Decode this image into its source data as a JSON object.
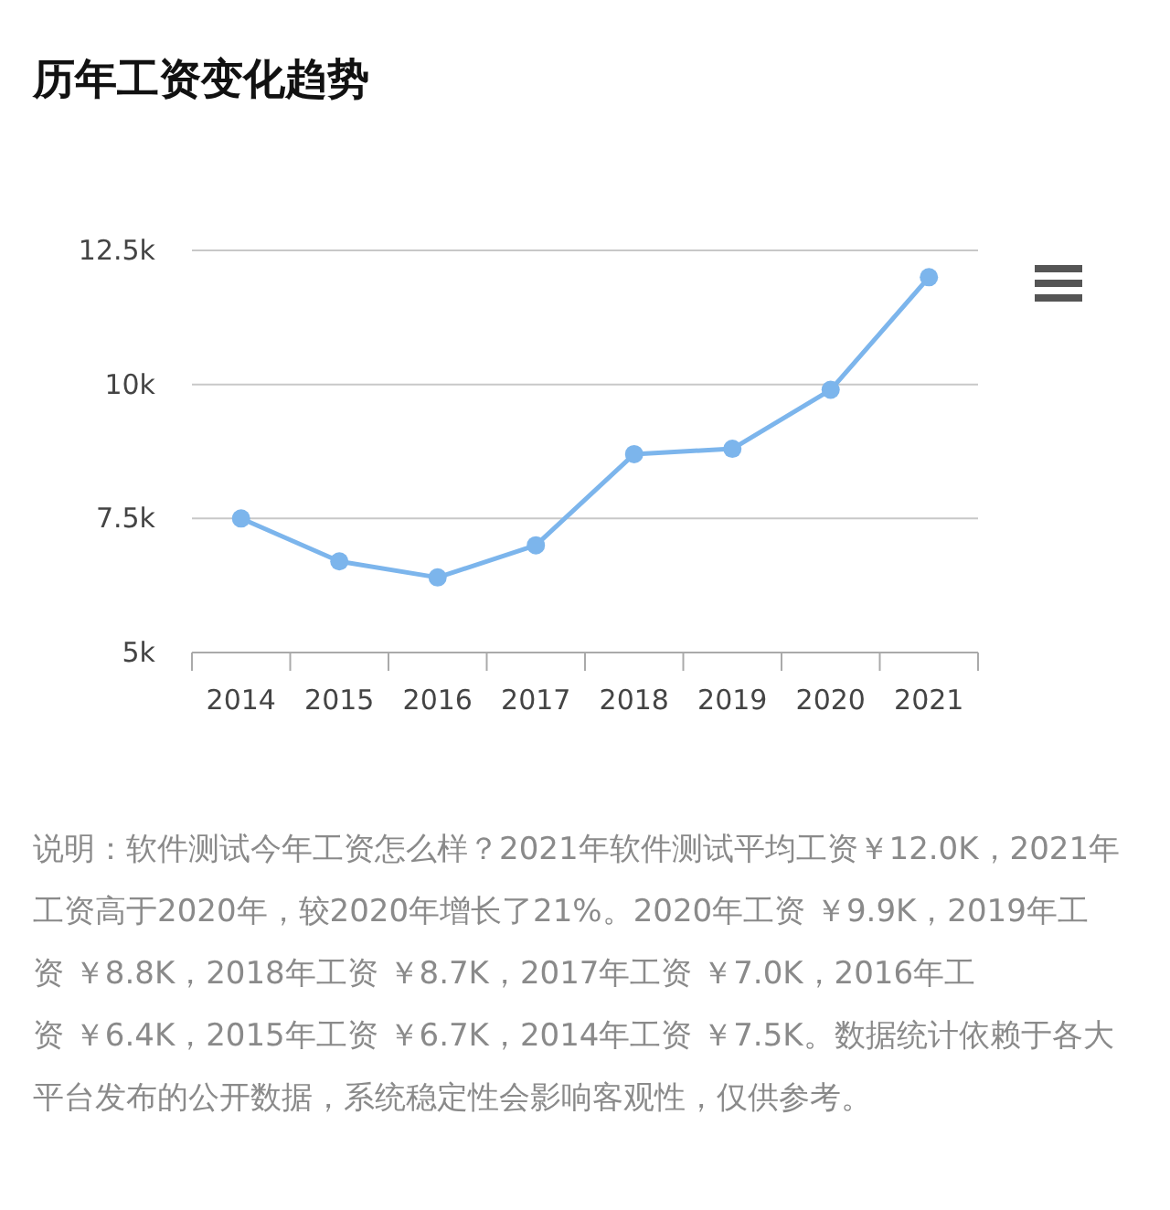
{
  "chart_data": {
    "type": "line",
    "title": "历年工资变化趋势",
    "categories": [
      "2014",
      "2015",
      "2016",
      "2017",
      "2018",
      "2019",
      "2020",
      "2021"
    ],
    "series": [
      {
        "color": "#7cb5ec",
        "values": [
          7.5,
          6.7,
          6.4,
          7.0,
          8.7,
          8.8,
          9.9,
          12.0
        ]
      }
    ],
    "ylim": [
      5,
      12.5
    ],
    "yticks": [
      {
        "value": 5,
        "label": "5k"
      },
      {
        "value": 7.5,
        "label": "7.5k"
      },
      {
        "value": 10,
        "label": "10k"
      },
      {
        "value": 12.5,
        "label": "12.5k"
      }
    ],
    "grid": "y",
    "marker": "circle",
    "line_style": "solid",
    "annotations": [
      "说明：软件测试今年工资怎么样？2021年软件测试平均工资￥12.0K，2021年工资高于2020年，较2020年增长了21%。2020年工资 ￥9.9K，2019年工资 ￥8.8K，2018年工资 ￥8.7K，2017年工资 ￥7.0K，2016年工资 ￥6.4K，2015年工资 ￥6.7K，2014年工资 ￥7.5K。数据统计依赖于各大平台发布的公开数据，系统稳定性会影响客观性，仅供参考。"
    ]
  }
}
